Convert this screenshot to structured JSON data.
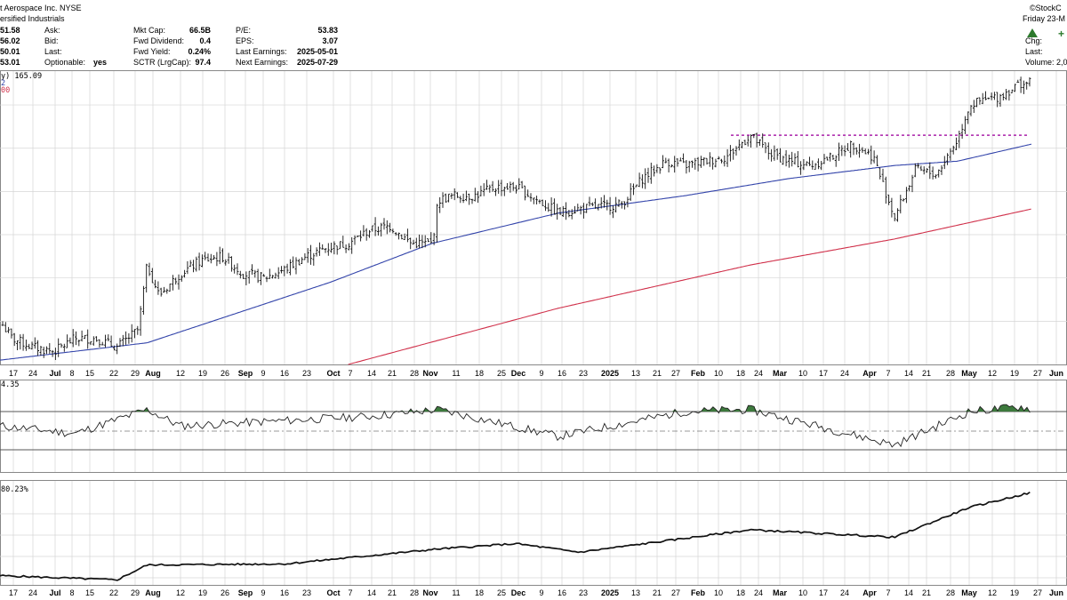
{
  "header": {
    "title": "t Aerospace Inc.  NYSE",
    "subtitle": "ersified Industrials",
    "watermark": "©StockC",
    "left_values": [
      "51.58",
      "56.02",
      "50.01",
      "53.01"
    ],
    "col1": [
      {
        "label": "Ask:",
        "value": ""
      },
      {
        "label": "Bid:",
        "value": ""
      },
      {
        "label": "Last:",
        "value": ""
      },
      {
        "label": "Optionable:",
        "value": "yes"
      }
    ],
    "col2": [
      {
        "label": "Mkt Cap:",
        "value": "66.5B"
      },
      {
        "label": "Fwd Dividend:",
        "value": "0.4"
      },
      {
        "label": "Fwd Yield:",
        "value": "0.24%"
      },
      {
        "label": "SCTR (LrgCap):",
        "value": "97.4"
      }
    ],
    "col3": [
      {
        "label": "P/E:",
        "value": "53.83"
      },
      {
        "label": "EPS:",
        "value": "3.07"
      },
      {
        "label": "Last Earnings:",
        "value": "2025-05-01"
      },
      {
        "label": "Next Earnings:",
        "value": "2025-07-29"
      }
    ],
    "right": {
      "date": "Friday  23-M",
      "plus": "+",
      "chg_label": "Chg:",
      "last_label": "Last:",
      "volume_label": "Volume: 2,0"
    }
  },
  "price_panel": {
    "legend": "y) 165.09",
    "legend_sub1": "2",
    "legend_sub2": "00"
  },
  "rsi_panel": {
    "legend": "4.35"
  },
  "perf_panel": {
    "legend": "80.23%"
  },
  "colors": {
    "price_bars": "#111111",
    "ma_50": "#3344aa",
    "ma_200": "#d0304a",
    "resistance": "#aa22aa",
    "rsi_fill": "#3d7a3d",
    "grid": "#d6d6d6",
    "panel_border": "#888888"
  },
  "chart_data": {
    "type": "line",
    "ticker_name": "t Aerospace Inc.",
    "x_tick_labels": [
      "17",
      "24",
      "Jul",
      "8",
      "15",
      "22",
      "29",
      "Aug",
      "12",
      "19",
      "26",
      "Sep",
      "9",
      "16",
      "23",
      "Oct",
      "7",
      "14",
      "21",
      "28",
      "Nov",
      "11",
      "18",
      "25",
      "Dec",
      "9",
      "16",
      "23",
      "2025",
      "13",
      "21",
      "27",
      "Feb",
      "10",
      "18",
      "24",
      "Mar",
      "10",
      "17",
      "24",
      "Apr",
      "7",
      "14",
      "21",
      "28",
      "May",
      "12",
      "19",
      "27",
      "Jun"
    ],
    "bold_tick_labels": [
      "Jul",
      "Aug",
      "Sep",
      "Oct",
      "Nov",
      "Dec",
      "2025",
      "Feb",
      "Mar",
      "Apr",
      "May",
      "Jun"
    ],
    "price_series_close": [
      {
        "date": "2024-06-13",
        "close": 110
      },
      {
        "date": "2024-06-17",
        "close": 106
      },
      {
        "date": "2024-06-24",
        "close": 104
      },
      {
        "date": "2024-07-01",
        "close": 103
      },
      {
        "date": "2024-07-08",
        "close": 106
      },
      {
        "date": "2024-07-15",
        "close": 106
      },
      {
        "date": "2024-07-22",
        "close": 104
      },
      {
        "date": "2024-07-29",
        "close": 108
      },
      {
        "date": "2024-08-01",
        "close": 123
      },
      {
        "date": "2024-08-05",
        "close": 116
      },
      {
        "date": "2024-08-12",
        "close": 121
      },
      {
        "date": "2024-08-19",
        "close": 124
      },
      {
        "date": "2024-08-26",
        "close": 125
      },
      {
        "date": "2024-09-02",
        "close": 121
      },
      {
        "date": "2024-09-09",
        "close": 120
      },
      {
        "date": "2024-09-16",
        "close": 122
      },
      {
        "date": "2024-09-23",
        "close": 125
      },
      {
        "date": "2024-09-30",
        "close": 127
      },
      {
        "date": "2024-10-07",
        "close": 128
      },
      {
        "date": "2024-10-14",
        "close": 131
      },
      {
        "date": "2024-10-21",
        "close": 132
      },
      {
        "date": "2024-10-28",
        "close": 128
      },
      {
        "date": "2024-11-04",
        "close": 128
      },
      {
        "date": "2024-11-06",
        "close": 138
      },
      {
        "date": "2024-11-11",
        "close": 139
      },
      {
        "date": "2024-11-18",
        "close": 139
      },
      {
        "date": "2024-11-25",
        "close": 141
      },
      {
        "date": "2024-12-02",
        "close": 141
      },
      {
        "date": "2024-12-09",
        "close": 138
      },
      {
        "date": "2024-12-16",
        "close": 135
      },
      {
        "date": "2024-12-23",
        "close": 136
      },
      {
        "date": "2025-01-06",
        "close": 137
      },
      {
        "date": "2025-01-13",
        "close": 143
      },
      {
        "date": "2025-01-21",
        "close": 147
      },
      {
        "date": "2025-01-27",
        "close": 146
      },
      {
        "date": "2025-02-03",
        "close": 147
      },
      {
        "date": "2025-02-10",
        "close": 148
      },
      {
        "date": "2025-02-18",
        "close": 153
      },
      {
        "date": "2025-02-24",
        "close": 149
      },
      {
        "date": "2025-03-03",
        "close": 147
      },
      {
        "date": "2025-03-10",
        "close": 146
      },
      {
        "date": "2025-03-17",
        "close": 148
      },
      {
        "date": "2025-03-24",
        "close": 151
      },
      {
        "date": "2025-03-31",
        "close": 148
      },
      {
        "date": "2025-04-07",
        "close": 134
      },
      {
        "date": "2025-04-14",
        "close": 145
      },
      {
        "date": "2025-04-21",
        "close": 144
      },
      {
        "date": "2025-04-28",
        "close": 152
      },
      {
        "date": "2025-05-02",
        "close": 160
      },
      {
        "date": "2025-05-12",
        "close": 162
      },
      {
        "date": "2025-05-19",
        "close": 165
      },
      {
        "date": "2025-05-23",
        "close": 165.09
      }
    ],
    "ma_50": [
      {
        "date": "2024-06-13",
        "value": 101
      },
      {
        "date": "2024-08-01",
        "value": 105
      },
      {
        "date": "2024-10-01",
        "value": 119
      },
      {
        "date": "2024-11-04",
        "value": 128
      },
      {
        "date": "2024-12-16",
        "value": 135
      },
      {
        "date": "2025-01-27",
        "value": 139
      },
      {
        "date": "2025-03-03",
        "value": 143
      },
      {
        "date": "2025-04-07",
        "value": 146
      },
      {
        "date": "2025-04-28",
        "value": 147
      },
      {
        "date": "2025-05-23",
        "value": 151
      }
    ],
    "ma_200": [
      {
        "date": "2024-10-07",
        "value": 100
      },
      {
        "date": "2024-12-16",
        "value": 113
      },
      {
        "date": "2025-02-18",
        "value": 123
      },
      {
        "date": "2025-04-07",
        "value": 129
      },
      {
        "date": "2025-05-23",
        "value": 136
      }
    ],
    "resistance_level": 153,
    "rsi": [
      {
        "date": "2024-06-13",
        "value": 55
      },
      {
        "date": "2024-07-08",
        "value": 47
      },
      {
        "date": "2024-08-01",
        "value": 72
      },
      {
        "date": "2024-08-12",
        "value": 55
      },
      {
        "date": "2024-10-14",
        "value": 65
      },
      {
        "date": "2024-11-06",
        "value": 72
      },
      {
        "date": "2024-12-16",
        "value": 44
      },
      {
        "date": "2025-01-27",
        "value": 70
      },
      {
        "date": "2025-02-18",
        "value": 72
      },
      {
        "date": "2025-04-07",
        "value": 35
      },
      {
        "date": "2025-05-02",
        "value": 70
      },
      {
        "date": "2025-05-19",
        "value": 75
      },
      {
        "date": "2025-05-23",
        "value": 72
      }
    ],
    "rsi_levels": [
      70,
      50,
      30
    ],
    "performance_pct": [
      {
        "date": "2024-06-13",
        "value": 2
      },
      {
        "date": "2024-07-22",
        "value": -2
      },
      {
        "date": "2024-08-01",
        "value": 12
      },
      {
        "date": "2024-09-16",
        "value": 13
      },
      {
        "date": "2024-11-06",
        "value": 27
      },
      {
        "date": "2024-12-02",
        "value": 32
      },
      {
        "date": "2024-12-23",
        "value": 24
      },
      {
        "date": "2025-02-18",
        "value": 45
      },
      {
        "date": "2025-04-07",
        "value": 38
      },
      {
        "date": "2025-05-02",
        "value": 66
      },
      {
        "date": "2025-05-23",
        "value": 80.23
      }
    ]
  }
}
